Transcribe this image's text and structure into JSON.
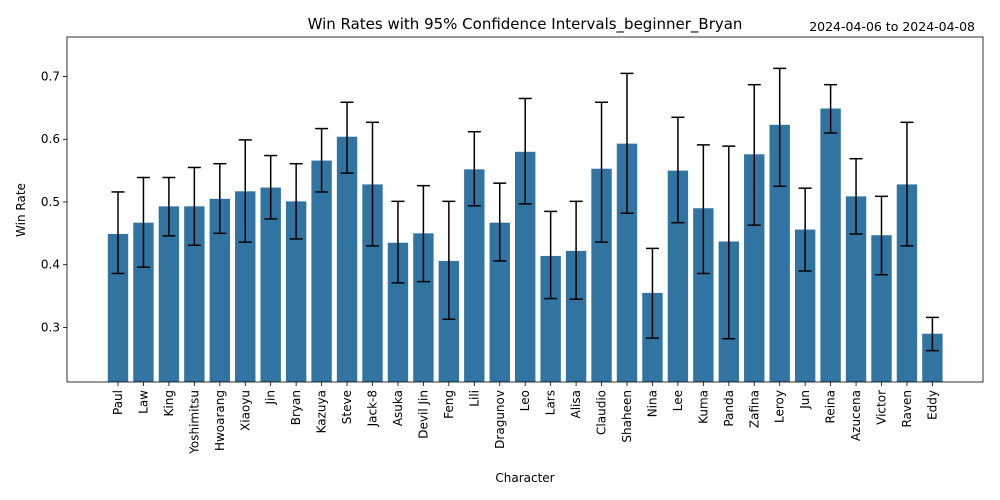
{
  "chart_data": {
    "type": "bar",
    "title": "Win Rates with 95% Confidence Intervals_beginner_Bryan",
    "date_range": "2024-04-06 to 2024-04-08",
    "xlabel": "Character",
    "ylabel": "Win Rate",
    "ylim": [
      0.213,
      0.763
    ],
    "yticks": [
      "0.3",
      "0.4",
      "0.5",
      "0.6",
      "0.7"
    ],
    "grid": false,
    "bar_color": "#3274a1",
    "error_color": "#000000",
    "categories": [
      "Paul",
      "Law",
      "King",
      "Yoshimitsu",
      "Hwoarang",
      "Xiaoyu",
      "Jin",
      "Bryan",
      "Kazuya",
      "Steve",
      "Jack-8",
      "Asuka",
      "Devil Jin",
      "Feng",
      "Lili",
      "Dragunov",
      "Leo",
      "Lars",
      "Alisa",
      "Claudio",
      "Shaheen",
      "Nina",
      "Lee",
      "Kuma",
      "Panda",
      "Zafina",
      "Leroy",
      "Jun",
      "Reina",
      "Azucena",
      "Victor",
      "Raven",
      "Eddy"
    ],
    "values": [
      0.449,
      0.467,
      0.493,
      0.493,
      0.505,
      0.517,
      0.523,
      0.501,
      0.566,
      0.604,
      0.528,
      0.435,
      0.45,
      0.406,
      0.552,
      0.467,
      0.58,
      0.414,
      0.422,
      0.553,
      0.593,
      0.355,
      0.55,
      0.49,
      0.437,
      0.576,
      0.623,
      0.456,
      0.649,
      0.509,
      0.447,
      0.528,
      0.29
    ],
    "ci_low": [
      0.386,
      0.396,
      0.446,
      0.431,
      0.45,
      0.436,
      0.473,
      0.441,
      0.516,
      0.546,
      0.43,
      0.371,
      0.373,
      0.313,
      0.494,
      0.406,
      0.497,
      0.346,
      0.345,
      0.436,
      0.482,
      0.283,
      0.467,
      0.386,
      0.282,
      0.463,
      0.525,
      0.39,
      0.61,
      0.449,
      0.384,
      0.43,
      0.263
    ],
    "ci_high": [
      0.516,
      0.539,
      0.539,
      0.555,
      0.561,
      0.599,
      0.574,
      0.561,
      0.617,
      0.659,
      0.627,
      0.501,
      0.526,
      0.501,
      0.612,
      0.53,
      0.665,
      0.485,
      0.501,
      0.659,
      0.705,
      0.426,
      0.635,
      0.591,
      0.589,
      0.687,
      0.713,
      0.522,
      0.687,
      0.569,
      0.509,
      0.627,
      0.316
    ]
  }
}
